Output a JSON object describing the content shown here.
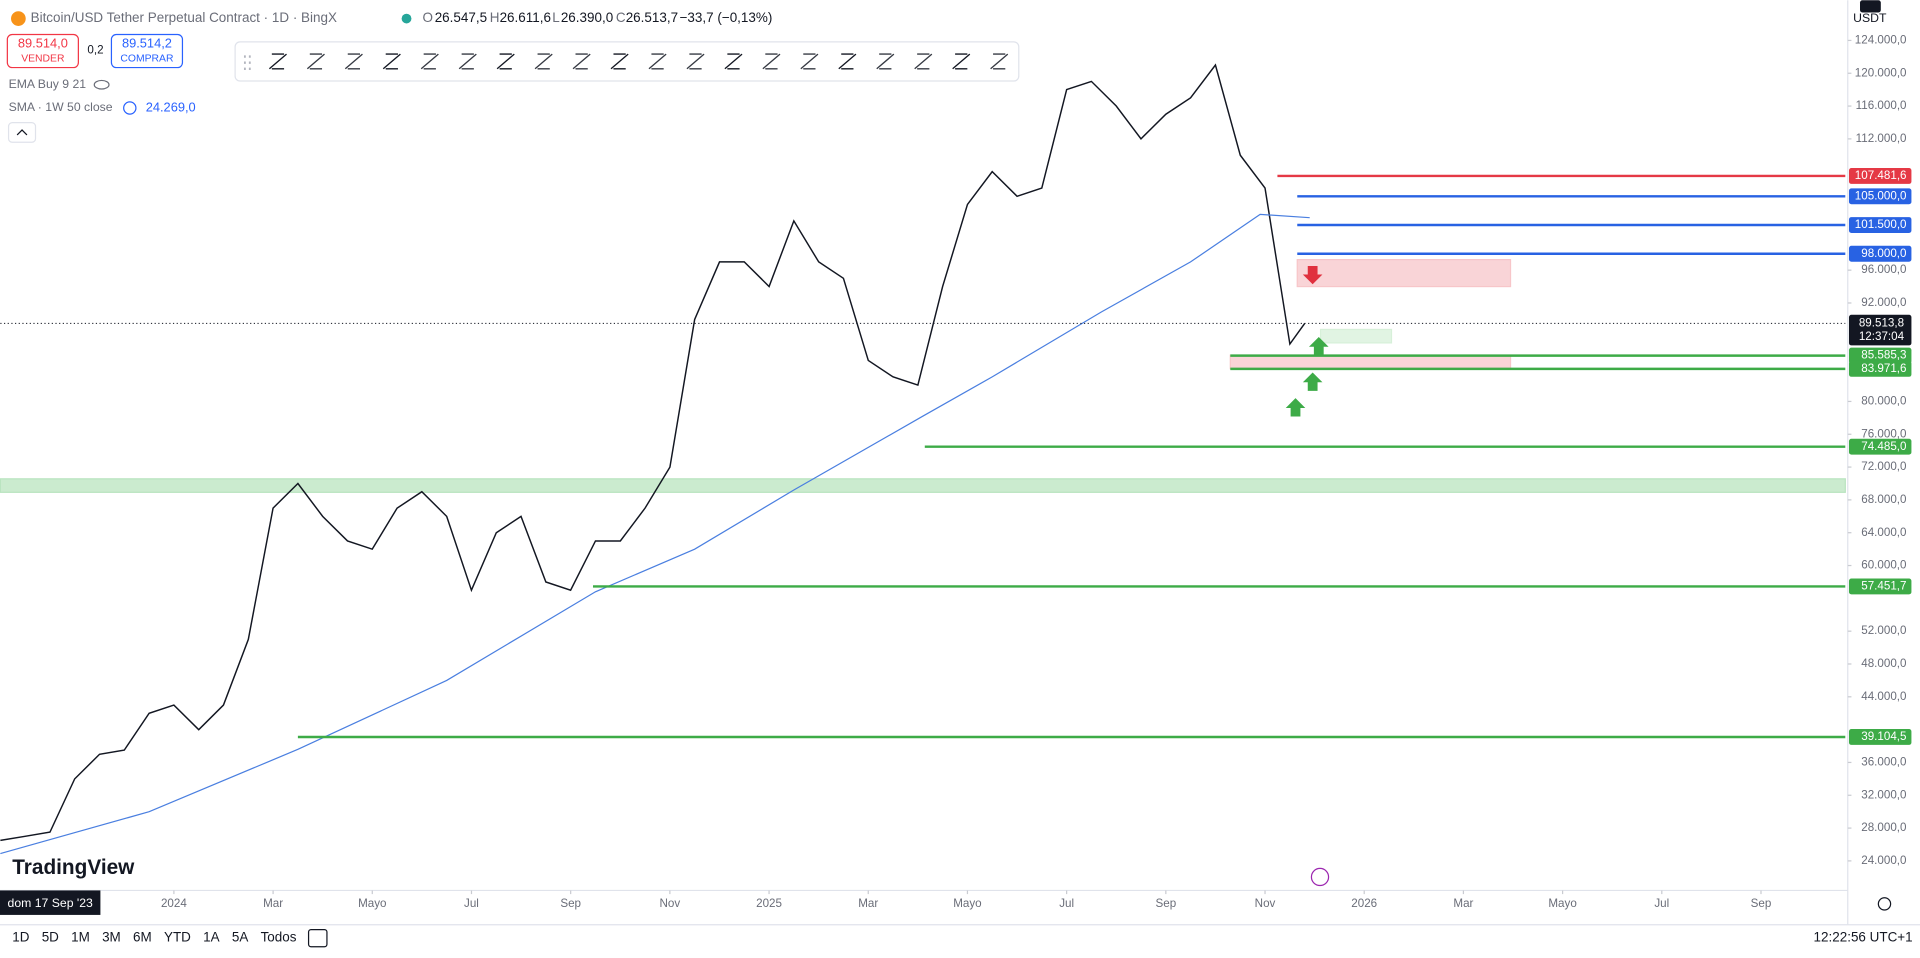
{
  "header": {
    "symbol": "Bitcoin/USD Tether Perpetual Contract · 1D · BingX",
    "o_label": "O",
    "o": "26.547,5",
    "h_label": "H",
    "h": "26.611,6",
    "l_label": "L",
    "l": "26.390,0",
    "c_label": "C",
    "c": "26.513,7",
    "change": "−33,7 (−0,13%)",
    "sell_price": "89.514,0",
    "sell": "VENDER",
    "spread": "0,2",
    "buy_price": "89.514,2",
    "buy": "COMPRAR",
    "ema": "EMA Buy 9 21",
    "sma": "SMA · 1W 50 close",
    "sma_value": "24.269,0",
    "currency": "USDT"
  },
  "chart_data": {
    "type": "line",
    "xlim": [
      0,
      37.2
    ],
    "ylim": [
      20700,
      128900
    ],
    "xticks": [
      {
        "value": 3.5,
        "label": "2024"
      },
      {
        "value": 5.5,
        "label": "Mar"
      },
      {
        "value": 7.5,
        "label": "Mayo"
      },
      {
        "value": 9.5,
        "label": "Jul"
      },
      {
        "value": 11.5,
        "label": "Sep"
      },
      {
        "value": 13.5,
        "label": "Nov"
      },
      {
        "value": 15.5,
        "label": "2025"
      },
      {
        "value": 17.5,
        "label": "Mar"
      },
      {
        "value": 19.5,
        "label": "Mayo"
      },
      {
        "value": 21.5,
        "label": "Jul"
      },
      {
        "value": 23.5,
        "label": "Sep"
      },
      {
        "value": 25.5,
        "label": "Nov"
      },
      {
        "value": 27.5,
        "label": "2026"
      },
      {
        "value": 29.5,
        "label": "Mar"
      },
      {
        "value": 31.5,
        "label": "Mayo"
      },
      {
        "value": 33.5,
        "label": "Jul"
      },
      {
        "value": 35.5,
        "label": "Sep"
      }
    ],
    "yticks": [
      {
        "value": 124000,
        "label": "124.000,0"
      },
      {
        "value": 120000,
        "label": "120.000,0"
      },
      {
        "value": 116000,
        "label": "116.000,0"
      },
      {
        "value": 112000,
        "label": "112.000,0"
      },
      {
        "value": 96000,
        "label": "96.000,0"
      },
      {
        "value": 92000,
        "label": "92.000,0"
      },
      {
        "value": 80000,
        "label": "80.000,0"
      },
      {
        "value": 76000,
        "label": "76.000,0"
      },
      {
        "value": 72000,
        "label": "72.000,0"
      },
      {
        "value": 68000,
        "label": "68.000,0"
      },
      {
        "value": 64000,
        "label": "64.000,0"
      },
      {
        "value": 60000,
        "label": "60.000,0"
      },
      {
        "value": 52000,
        "label": "52.000,0"
      },
      {
        "value": 48000,
        "label": "48.000,0"
      },
      {
        "value": 44000,
        "label": "44.000,0"
      },
      {
        "value": 36000,
        "label": "36.000,0"
      },
      {
        "value": 32000,
        "label": "32.000,0"
      },
      {
        "value": 28000,
        "label": "28.000,0"
      },
      {
        "value": 24000,
        "label": "24.000,0"
      }
    ],
    "series": [
      {
        "color": "#131722",
        "x": [
          0,
          0.5,
          1,
          1.5,
          2,
          2.5,
          3,
          3.5,
          4,
          4.5,
          5,
          5.5,
          6,
          6.5,
          7,
          7.5,
          8,
          8.5,
          9,
          9.5,
          10,
          10.5,
          11,
          11.5,
          12,
          12.5,
          13,
          13.5,
          14,
          14.5,
          15,
          15.5,
          16,
          16.5,
          17,
          17.5,
          18,
          18.5,
          19,
          19.5,
          20,
          20.5,
          21,
          21.5,
          22,
          22.5,
          23,
          23.5,
          24,
          24.5,
          25,
          25.5,
          26,
          26.3
        ],
        "values": [
          26500,
          27000,
          27500,
          34000,
          37000,
          37500,
          42000,
          43000,
          40000,
          43000,
          51000,
          67000,
          70000,
          66000,
          63000,
          62000,
          67000,
          69000,
          66000,
          57000,
          64000,
          66000,
          58000,
          57000,
          63000,
          63000,
          67000,
          72000,
          90000,
          97000,
          97000,
          94000,
          102000,
          97000,
          95000,
          85000,
          83000,
          82000,
          94000,
          104000,
          108000,
          105000,
          106000,
          118000,
          119000,
          116000,
          112000,
          115000,
          117000,
          121000,
          110000,
          106000,
          87000,
          89500
        ]
      },
      {
        "color": "#4a7fe0",
        "x": [
          0,
          3,
          6,
          9,
          12,
          14,
          16,
          18.6,
          20,
          22.2,
          24,
          25.4,
          26.4
        ],
        "values": [
          24900,
          30000,
          37600,
          46000,
          56800,
          62000,
          69200,
          78200,
          83000,
          90900,
          97000,
          102800,
          102400
        ]
      }
    ],
    "levels": [
      {
        "value": 107481.6,
        "label": "107.481,6",
        "color": "#e53945",
        "start": 25.75
      },
      {
        "value": 105000,
        "label": "105.000,0",
        "color": "#2862e3",
        "start": 26.15
      },
      {
        "value": 101500,
        "label": "101.500,0",
        "color": "#2862e3",
        "start": 26.15
      },
      {
        "value": 98000,
        "label": "98.000,0",
        "color": "#2862e3",
        "start": 26.15
      },
      {
        "value": 85585.3,
        "label": "85.585,3",
        "color": "#3dab47",
        "start": 24.8
      },
      {
        "value": 83971.6,
        "label": "83.971,6",
        "color": "#3dab47",
        "start": 24.8
      },
      {
        "value": 74485,
        "label": "74.485,0",
        "color": "#3dab47",
        "start": 18.64
      },
      {
        "value": 57451.7,
        "label": "57.451,7",
        "color": "#3dab47",
        "start": 11.95
      },
      {
        "value": 39104.5,
        "label": "39.104,5",
        "color": "#3dab47",
        "start": 6
      }
    ],
    "zones": [
      {
        "ylim": [
          68925,
          70567
        ],
        "xlim": [
          0,
          37.2
        ],
        "color": "#b9e4bf"
      },
      {
        "ylim": [
          94000,
          97284
        ],
        "xlim": [
          26.15,
          30.45
        ],
        "color": "#f7c6c9"
      },
      {
        "ylim": [
          84000,
          85642
        ],
        "xlim": [
          24.8,
          30.45
        ],
        "color": "#f7c6c9"
      },
      {
        "ylim": [
          87134,
          88776
        ],
        "xlim": [
          26.62,
          28.05
        ],
        "color": "#d7f0d9"
      }
    ],
    "last": {
      "value": 89513.8,
      "label": "89.513,8",
      "countdown": "12:37:04"
    },
    "date_label": "dom 17 Sep '23"
  },
  "footer": {
    "ranges": [
      "1D",
      "5D",
      "1M",
      "3M",
      "6M",
      "YTD",
      "1A",
      "5A",
      "Todos"
    ],
    "clock": "12:22:56 UTC+1",
    "brand": "TradingView"
  }
}
